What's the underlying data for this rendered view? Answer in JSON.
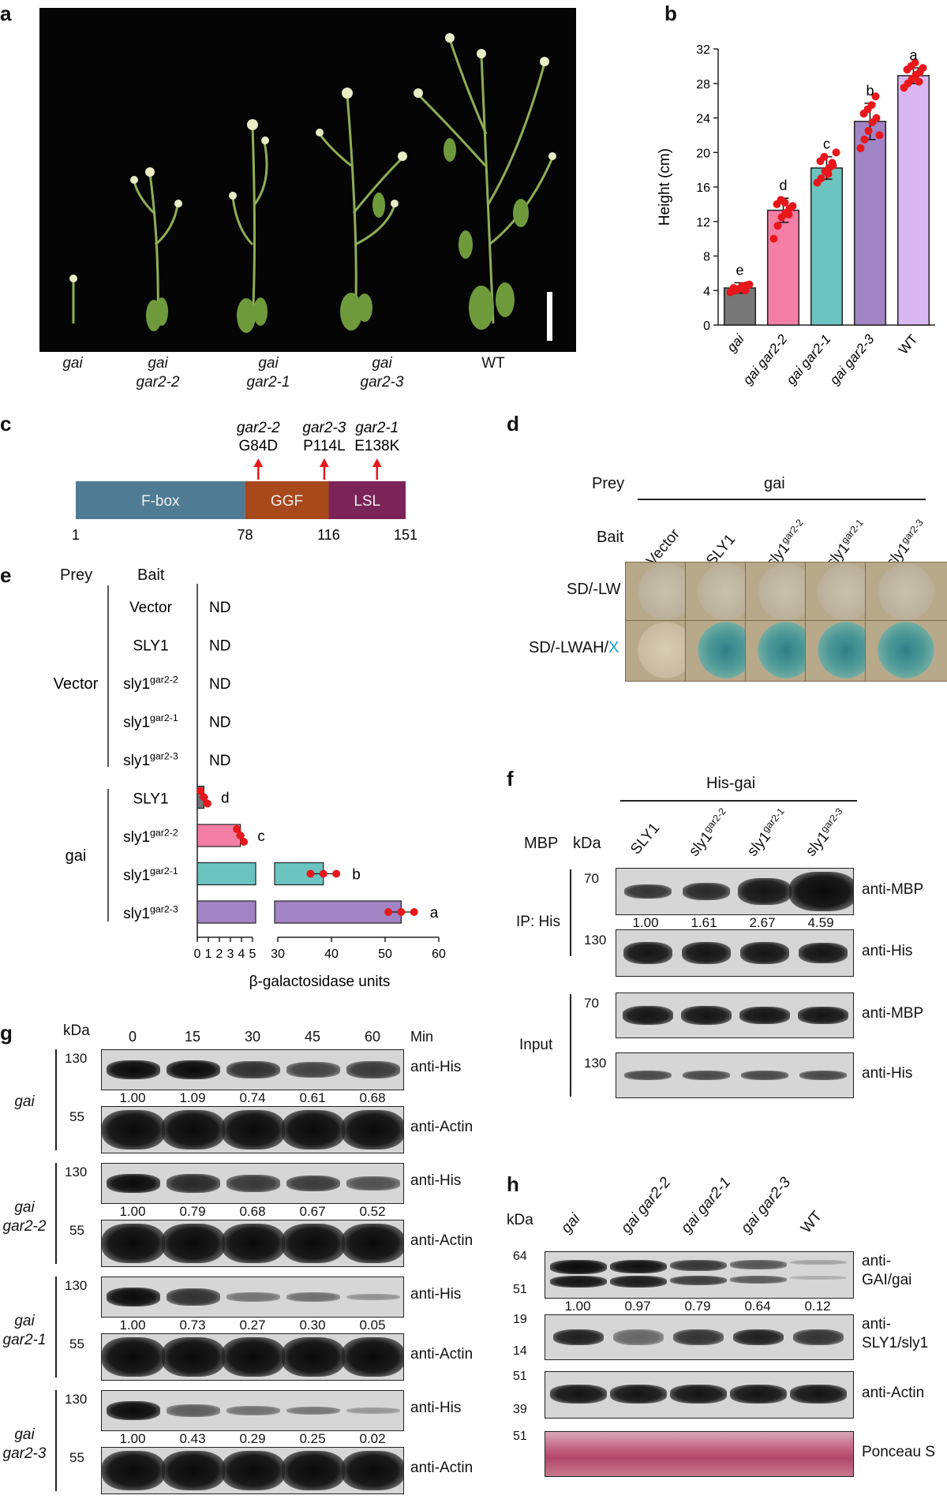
{
  "panel_labels": {
    "a": "a",
    "b": "b",
    "c": "c",
    "d": "d",
    "e": "e",
    "f": "f",
    "g": "g",
    "h": "h"
  },
  "panel_a": {
    "genotypes": [
      {
        "line1": "gai",
        "line2": ""
      },
      {
        "line1": "gai",
        "line2": "gar2-2"
      },
      {
        "line1": "gai",
        "line2": "gar2-1"
      },
      {
        "line1": "gai",
        "line2": "gar2-3"
      },
      {
        "line1": "WT",
        "line2": ""
      }
    ]
  },
  "chart_data": {
    "type": "bar",
    "categories": [
      "gai",
      "gai gar2-2",
      "gai gar2-1",
      "gai gar2-3",
      "WT"
    ],
    "values": [
      4.3,
      13.3,
      18.2,
      23.6,
      28.9
    ],
    "errors": [
      0.6,
      1.4,
      1.3,
      2.1,
      0.9
    ],
    "letters": [
      "e",
      "d",
      "c",
      "b",
      "a"
    ],
    "colors": [
      "#777777",
      "#f47fa6",
      "#6cc4c0",
      "#a184c4",
      "#d9b8f2"
    ],
    "ylabel": "Height (cm)",
    "ylim": [
      0,
      32
    ],
    "yticks": [
      "0",
      "4",
      "8",
      "12",
      "16",
      "20",
      "24",
      "28",
      "32"
    ],
    "points": [
      [
        3.8,
        4.0,
        4.2,
        4.5,
        4.6,
        4.3,
        4.1,
        4.4,
        4.0,
        4.7
      ],
      [
        10.0,
        11.5,
        12.5,
        13.0,
        13.5,
        14.0,
        14.5,
        14.2,
        12.8,
        13.8
      ],
      [
        16.5,
        17.0,
        17.8,
        18.2,
        18.5,
        19.0,
        19.5,
        17.5,
        18.8,
        20.0
      ],
      [
        20.5,
        21.5,
        22.5,
        23.5,
        24.0,
        24.5,
        25.0,
        25.5,
        26.5,
        22.0
      ],
      [
        27.5,
        28.0,
        28.5,
        29.0,
        29.3,
        29.6,
        30.0,
        30.4,
        28.2,
        29.8
      ]
    ]
  },
  "panel_c": {
    "domains": [
      {
        "name": "F-box",
        "color": "#4f7b94"
      },
      {
        "name": "GGF",
        "color": "#a8491c"
      },
      {
        "name": "LSL",
        "color": "#7b2458"
      }
    ],
    "positions": [
      "1",
      "78",
      "116",
      "151"
    ],
    "mutations": [
      {
        "allele": "gar2-2",
        "change": "G84D"
      },
      {
        "allele": "gar2-3",
        "change": "P114L"
      },
      {
        "allele": "gar2-1",
        "change": "E138K"
      }
    ]
  },
  "panel_d": {
    "prey_label": "Prey",
    "prey_value": "gai",
    "bait_label": "Bait",
    "baits": [
      {
        "base": "Vector",
        "sup": ""
      },
      {
        "base": "SLY1",
        "sup": ""
      },
      {
        "base": "sly1",
        "sup": "gar2-2"
      },
      {
        "base": "sly1",
        "sup": "gar2-1"
      },
      {
        "base": "sly1",
        "sup": "gar2-3"
      }
    ],
    "media": [
      {
        "name": "SD/-LW",
        "suffix": ""
      },
      {
        "name": "SD/-LWAH/",
        "suffix": "X"
      }
    ],
    "blue_color": "#1aa3d9"
  },
  "panel_e": {
    "prey_label": "Prey",
    "bait_label": "Bait",
    "groups": [
      {
        "name": "Vector"
      },
      {
        "name": "gai"
      }
    ],
    "rows": [
      {
        "base": "Vector",
        "sup": "",
        "value": "ND"
      },
      {
        "base": "SLY1",
        "sup": "",
        "value": "ND"
      },
      {
        "base": "sly1",
        "sup": "gar2-2",
        "value": "ND"
      },
      {
        "base": "sly1",
        "sup": "gar2-1",
        "value": "ND"
      },
      {
        "base": "sly1",
        "sup": "gar2-3",
        "value": "ND"
      },
      {
        "base": "SLY1",
        "sup": "",
        "value": "d"
      },
      {
        "base": "sly1",
        "sup": "gar2-2",
        "value": "c"
      },
      {
        "base": "sly1",
        "sup": "gar2-1",
        "value": "b"
      },
      {
        "base": "sly1",
        "sup": "gar2-3",
        "value": "a"
      }
    ],
    "xlabel": "β-galactosidase units",
    "xticks_left": [
      "0",
      "1",
      "2",
      "3",
      "4",
      "5"
    ],
    "xticks_right": [
      "30",
      "40",
      "50",
      "60"
    ],
    "bars": [
      {
        "value": 0.6,
        "color": "#777777"
      },
      {
        "value": 3.9,
        "color": "#f47fa6"
      },
      {
        "value": 38.5,
        "color": "#6cc4c0"
      },
      {
        "value": 53.0,
        "color": "#a184c4"
      }
    ]
  },
  "panel_f": {
    "title": "His-gai",
    "mbp_label": "MBP",
    "kda_label": "kDa",
    "lanes": [
      {
        "base": "SLY1",
        "sup": ""
      },
      {
        "base": "sly1",
        "sup": "gar2-2"
      },
      {
        "base": "sly1",
        "sup": "gar2-1"
      },
      {
        "base": "sly1",
        "sup": "gar2-3"
      }
    ],
    "sections": [
      {
        "name": "IP: His"
      },
      {
        "name": "Input"
      }
    ],
    "blots": [
      {
        "kda": "70",
        "antibody": "anti-MBP"
      },
      {
        "kda": "130",
        "antibody": "anti-His"
      },
      {
        "kda": "70",
        "antibody": "anti-MBP"
      },
      {
        "kda": "130",
        "antibody": "anti-His"
      }
    ],
    "quant": [
      "1.00",
      "1.61",
      "2.67",
      "4.59"
    ]
  },
  "panel_g": {
    "kda_label": "kDa",
    "min_label": "Min",
    "timepoints": [
      "0",
      "15",
      "30",
      "45",
      "60"
    ],
    "genotypes": [
      {
        "line1": "gai",
        "line2": "",
        "quant": [
          "1.00",
          "1.09",
          "0.74",
          "0.61",
          "0.68"
        ]
      },
      {
        "line1": "gai",
        "line2": "gar2-2",
        "quant": [
          "1.00",
          "0.79",
          "0.68",
          "0.67",
          "0.52"
        ]
      },
      {
        "line1": "gai",
        "line2": "gar2-1",
        "quant": [
          "1.00",
          "0.73",
          "0.27",
          "0.30",
          "0.05"
        ]
      },
      {
        "line1": "gai",
        "line2": "gar2-3",
        "quant": [
          "1.00",
          "0.43",
          "0.29",
          "0.25",
          "0.02"
        ]
      }
    ],
    "his_kda": "130",
    "actin_kda": "55",
    "his_label": "anti-His",
    "actin_label": "anti-Actin"
  },
  "panel_h": {
    "kda_label": "kDa",
    "lanes": [
      "gai",
      "gai gar2-2",
      "gai gar2-1",
      "gai gar2-3",
      "WT"
    ],
    "blots": [
      {
        "kda_top": "64",
        "kda_bottom": "51",
        "line1": "anti-",
        "line2": "GAI/gai"
      },
      {
        "kda_top": "19",
        "kda_bottom": "14",
        "line1": "anti-",
        "line2": "SLY1/sly1"
      },
      {
        "kda_top": "51",
        "kda_bottom": "39",
        "line1": "anti-Actin",
        "line2": ""
      },
      {
        "kda_top": "51",
        "kda_bottom": "",
        "line1": "Ponceau S",
        "line2": ""
      }
    ],
    "quant": [
      "1.00",
      "0.97",
      "0.79",
      "0.64",
      "0.12"
    ]
  }
}
